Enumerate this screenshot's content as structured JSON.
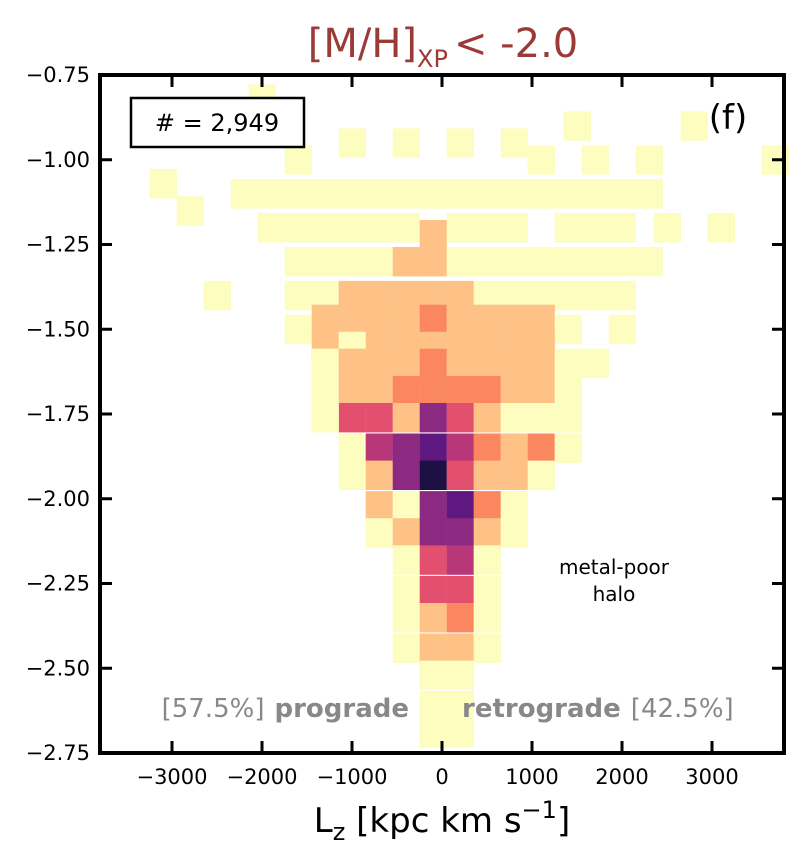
{
  "chart_data": {
    "type": "heatmap",
    "title_base": "[M/H]",
    "title_sub": "XP",
    "title_rest": "< -2.0",
    "xlabel": {
      "main": "L",
      "sub": "z",
      "rest": " [kpc km s",
      "sup": "−1",
      "close": "]"
    },
    "ylabel": "",
    "xlim": [
      -3800,
      3800
    ],
    "ylim": [
      -2.75,
      -0.75
    ],
    "x_ticks": [
      -3000,
      -2000,
      -1000,
      0,
      1000,
      2000,
      3000
    ],
    "x_tick_labels": [
      "−3000",
      "−2000",
      "−1000",
      "0",
      "1000",
      "2000",
      "3000"
    ],
    "y_ticks": [
      -0.75,
      -1.0,
      -1.25,
      -1.5,
      -1.75,
      -2.0,
      -2.25,
      -2.5,
      -2.75
    ],
    "y_tick_labels": [
      "−0.75",
      "−1.00",
      "−1.25",
      "−1.50",
      "−1.75",
      "−2.00",
      "−2.25",
      "−2.50",
      "−2.75"
    ],
    "bin_width_x": 295,
    "bin_height_y": 0.085,
    "colormap": [
      "#fcfdbf",
      "#fec287",
      "#fb8761",
      "#e3506f",
      "#b73779",
      "#8c2981",
      "#5f187f",
      "#1c1044"
    ],
    "cells": [
      {
        "x": -3100,
        "y": -1.07,
        "v": 0
      },
      {
        "x": -2800,
        "y": -1.15,
        "v": 0
      },
      {
        "x": -2500,
        "y": -1.4,
        "v": 0
      },
      {
        "x": -2000,
        "y": -0.82,
        "v": 0
      },
      {
        "x": 1500,
        "y": -0.9,
        "v": 0
      },
      {
        "x": 2800,
        "y": -0.9,
        "v": 0
      },
      {
        "x": 3700,
        "y": -1.0,
        "v": 0
      },
      {
        "x": 2500,
        "y": -1.2,
        "v": 0
      },
      {
        "x": 3100,
        "y": -1.2,
        "v": 0
      },
      {
        "x": -2200,
        "y": -1.1,
        "v": 0
      },
      {
        "x": -1900,
        "y": -1.1,
        "v": 0
      },
      {
        "x": -1600,
        "y": -1.1,
        "v": 0
      },
      {
        "x": -1300,
        "y": -1.1,
        "v": 0
      },
      {
        "x": -1000,
        "y": -1.1,
        "v": 0
      },
      {
        "x": -700,
        "y": -1.1,
        "v": 0
      },
      {
        "x": -400,
        "y": -1.1,
        "v": 0
      },
      {
        "x": -100,
        "y": -1.1,
        "v": 0
      },
      {
        "x": 200,
        "y": -1.1,
        "v": 0
      },
      {
        "x": 500,
        "y": -1.1,
        "v": 0
      },
      {
        "x": 800,
        "y": -1.1,
        "v": 0
      },
      {
        "x": 1100,
        "y": -1.1,
        "v": 0
      },
      {
        "x": 1400,
        "y": -1.1,
        "v": 0
      },
      {
        "x": 1700,
        "y": -1.1,
        "v": 0
      },
      {
        "x": 2000,
        "y": -1.1,
        "v": 0
      },
      {
        "x": 2300,
        "y": -1.1,
        "v": 0
      },
      {
        "x": -1600,
        "y": -1.0,
        "v": 0
      },
      {
        "x": -1000,
        "y": -0.95,
        "v": 0
      },
      {
        "x": -400,
        "y": -0.95,
        "v": 0
      },
      {
        "x": 200,
        "y": -0.95,
        "v": 0
      },
      {
        "x": 800,
        "y": -0.95,
        "v": 0
      },
      {
        "x": 1100,
        "y": -1.0,
        "v": 0
      },
      {
        "x": 1700,
        "y": -1.0,
        "v": 0
      },
      {
        "x": 2300,
        "y": -1.0,
        "v": 0
      },
      {
        "x": -1900,
        "y": -1.2,
        "v": 0
      },
      {
        "x": -1600,
        "y": -1.2,
        "v": 0
      },
      {
        "x": -1300,
        "y": -1.2,
        "v": 0
      },
      {
        "x": -1000,
        "y": -1.2,
        "v": 0
      },
      {
        "x": -700,
        "y": -1.2,
        "v": 0
      },
      {
        "x": -400,
        "y": -1.2,
        "v": 0
      },
      {
        "x": -100,
        "y": -1.22,
        "v": 1
      },
      {
        "x": 200,
        "y": -1.2,
        "v": 0
      },
      {
        "x": 500,
        "y": -1.2,
        "v": 0
      },
      {
        "x": 800,
        "y": -1.2,
        "v": 0
      },
      {
        "x": 1400,
        "y": -1.2,
        "v": 0
      },
      {
        "x": 1700,
        "y": -1.2,
        "v": 0
      },
      {
        "x": 2000,
        "y": -1.2,
        "v": 0
      },
      {
        "x": -1600,
        "y": -1.3,
        "v": 0
      },
      {
        "x": -1300,
        "y": -1.3,
        "v": 0
      },
      {
        "x": -1000,
        "y": -1.3,
        "v": 0
      },
      {
        "x": -700,
        "y": -1.3,
        "v": 0
      },
      {
        "x": -400,
        "y": -1.3,
        "v": 1
      },
      {
        "x": -100,
        "y": -1.3,
        "v": 1
      },
      {
        "x": 200,
        "y": -1.3,
        "v": 0
      },
      {
        "x": 500,
        "y": -1.3,
        "v": 0
      },
      {
        "x": 800,
        "y": -1.3,
        "v": 0
      },
      {
        "x": 1100,
        "y": -1.3,
        "v": 0
      },
      {
        "x": 1400,
        "y": -1.3,
        "v": 0
      },
      {
        "x": 1700,
        "y": -1.3,
        "v": 0
      },
      {
        "x": 2000,
        "y": -1.3,
        "v": 0
      },
      {
        "x": 2300,
        "y": -1.3,
        "v": 0
      },
      {
        "x": -1600,
        "y": -1.4,
        "v": 0
      },
      {
        "x": -1300,
        "y": -1.4,
        "v": 0
      },
      {
        "x": -1000,
        "y": -1.4,
        "v": 1
      },
      {
        "x": -700,
        "y": -1.4,
        "v": 1
      },
      {
        "x": -400,
        "y": -1.4,
        "v": 1
      },
      {
        "x": -100,
        "y": -1.4,
        "v": 1
      },
      {
        "x": 200,
        "y": -1.4,
        "v": 1
      },
      {
        "x": 500,
        "y": -1.4,
        "v": 0
      },
      {
        "x": 800,
        "y": -1.4,
        "v": 0
      },
      {
        "x": 1100,
        "y": -1.4,
        "v": 0
      },
      {
        "x": 1400,
        "y": -1.4,
        "v": 0
      },
      {
        "x": 1700,
        "y": -1.4,
        "v": 0
      },
      {
        "x": 2000,
        "y": -1.4,
        "v": 0
      },
      {
        "x": -1600,
        "y": -1.5,
        "v": 0
      },
      {
        "x": -1300,
        "y": -1.47,
        "v": 1
      },
      {
        "x": -1000,
        "y": -1.47,
        "v": 1
      },
      {
        "x": -700,
        "y": -1.47,
        "v": 1
      },
      {
        "x": -400,
        "y": -1.47,
        "v": 1
      },
      {
        "x": -100,
        "y": -1.47,
        "v": 2
      },
      {
        "x": 200,
        "y": -1.47,
        "v": 1
      },
      {
        "x": 500,
        "y": -1.47,
        "v": 1
      },
      {
        "x": 800,
        "y": -1.47,
        "v": 1
      },
      {
        "x": 1100,
        "y": -1.47,
        "v": 1
      },
      {
        "x": 1400,
        "y": -1.5,
        "v": 0
      },
      {
        "x": 2000,
        "y": -1.5,
        "v": 0
      },
      {
        "x": -1300,
        "y": -1.55,
        "v": 1
      },
      {
        "x": -1000,
        "y": -1.55,
        "v": 0
      },
      {
        "x": -700,
        "y": -1.55,
        "v": 1
      },
      {
        "x": -400,
        "y": -1.55,
        "v": 1
      },
      {
        "x": -100,
        "y": -1.55,
        "v": 1
      },
      {
        "x": 200,
        "y": -1.55,
        "v": 1
      },
      {
        "x": 500,
        "y": -1.55,
        "v": 1
      },
      {
        "x": 800,
        "y": -1.55,
        "v": 1
      },
      {
        "x": 1100,
        "y": -1.55,
        "v": 1
      },
      {
        "x": -1300,
        "y": -1.6,
        "v": 0
      },
      {
        "x": -1000,
        "y": -1.6,
        "v": 1
      },
      {
        "x": -700,
        "y": -1.6,
        "v": 1
      },
      {
        "x": -400,
        "y": -1.6,
        "v": 1
      },
      {
        "x": -100,
        "y": -1.6,
        "v": 2
      },
      {
        "x": 200,
        "y": -1.6,
        "v": 1
      },
      {
        "x": 500,
        "y": -1.6,
        "v": 1
      },
      {
        "x": 800,
        "y": -1.6,
        "v": 1
      },
      {
        "x": 1100,
        "y": -1.6,
        "v": 1
      },
      {
        "x": 1400,
        "y": -1.6,
        "v": 0
      },
      {
        "x": 1700,
        "y": -1.6,
        "v": 0
      },
      {
        "x": -1300,
        "y": -1.68,
        "v": 0
      },
      {
        "x": -1000,
        "y": -1.68,
        "v": 1
      },
      {
        "x": -700,
        "y": -1.68,
        "v": 1
      },
      {
        "x": -400,
        "y": -1.68,
        "v": 2
      },
      {
        "x": -100,
        "y": -1.68,
        "v": 2
      },
      {
        "x": 200,
        "y": -1.68,
        "v": 2
      },
      {
        "x": 500,
        "y": -1.68,
        "v": 2
      },
      {
        "x": 800,
        "y": -1.68,
        "v": 1
      },
      {
        "x": 1100,
        "y": -1.68,
        "v": 1
      },
      {
        "x": 1400,
        "y": -1.68,
        "v": 0
      },
      {
        "x": -1000,
        "y": -1.76,
        "v": 3
      },
      {
        "x": -700,
        "y": -1.76,
        "v": 3
      },
      {
        "x": -400,
        "y": -1.76,
        "v": 1
      },
      {
        "x": -100,
        "y": -1.76,
        "v": 5
      },
      {
        "x": 200,
        "y": -1.76,
        "v": 3
      },
      {
        "x": 500,
        "y": -1.76,
        "v": 1
      },
      {
        "x": 800,
        "y": -1.76,
        "v": 0
      },
      {
        "x": 1100,
        "y": -1.76,
        "v": 0
      },
      {
        "x": 1400,
        "y": -1.76,
        "v": 0
      },
      {
        "x": -1300,
        "y": -1.76,
        "v": 0
      },
      {
        "x": -1000,
        "y": -1.85,
        "v": 0
      },
      {
        "x": -700,
        "y": -1.85,
        "v": 4
      },
      {
        "x": -400,
        "y": -1.85,
        "v": 5
      },
      {
        "x": -100,
        "y": -1.85,
        "v": 6
      },
      {
        "x": 200,
        "y": -1.85,
        "v": 4
      },
      {
        "x": 500,
        "y": -1.85,
        "v": 2
      },
      {
        "x": 800,
        "y": -1.85,
        "v": 1
      },
      {
        "x": 1100,
        "y": -1.85,
        "v": 2
      },
      {
        "x": 1400,
        "y": -1.85,
        "v": 0
      },
      {
        "x": -1000,
        "y": -1.93,
        "v": 0
      },
      {
        "x": -700,
        "y": -1.93,
        "v": 1
      },
      {
        "x": -400,
        "y": -1.93,
        "v": 5
      },
      {
        "x": -100,
        "y": -1.93,
        "v": 7
      },
      {
        "x": 200,
        "y": -1.93,
        "v": 3
      },
      {
        "x": 500,
        "y": -1.93,
        "v": 1
      },
      {
        "x": 800,
        "y": -1.93,
        "v": 1
      },
      {
        "x": 1100,
        "y": -1.93,
        "v": 0
      },
      {
        "x": -700,
        "y": -2.02,
        "v": 1
      },
      {
        "x": -400,
        "y": -2.02,
        "v": 0
      },
      {
        "x": -100,
        "y": -2.02,
        "v": 5
      },
      {
        "x": 200,
        "y": -2.02,
        "v": 6
      },
      {
        "x": 500,
        "y": -2.02,
        "v": 2
      },
      {
        "x": 800,
        "y": -2.02,
        "v": 0
      },
      {
        "x": -700,
        "y": -2.1,
        "v": 0
      },
      {
        "x": -400,
        "y": -2.1,
        "v": 1
      },
      {
        "x": -100,
        "y": -2.1,
        "v": 5
      },
      {
        "x": 200,
        "y": -2.1,
        "v": 5
      },
      {
        "x": 500,
        "y": -2.1,
        "v": 1
      },
      {
        "x": 800,
        "y": -2.1,
        "v": 0
      },
      {
        "x": -400,
        "y": -2.18,
        "v": 0
      },
      {
        "x": -100,
        "y": -2.18,
        "v": 3
      },
      {
        "x": 200,
        "y": -2.18,
        "v": 4
      },
      {
        "x": 500,
        "y": -2.18,
        "v": 0
      },
      {
        "x": -400,
        "y": -2.27,
        "v": 0
      },
      {
        "x": -100,
        "y": -2.27,
        "v": 3
      },
      {
        "x": 200,
        "y": -2.27,
        "v": 3
      },
      {
        "x": 500,
        "y": -2.27,
        "v": 0
      },
      {
        "x": -400,
        "y": -2.35,
        "v": 0
      },
      {
        "x": -100,
        "y": -2.35,
        "v": 1
      },
      {
        "x": 200,
        "y": -2.35,
        "v": 2
      },
      {
        "x": 500,
        "y": -2.35,
        "v": 0
      },
      {
        "x": -400,
        "y": -2.44,
        "v": 0
      },
      {
        "x": -100,
        "y": -2.44,
        "v": 1
      },
      {
        "x": 200,
        "y": -2.44,
        "v": 1
      },
      {
        "x": 500,
        "y": -2.44,
        "v": 0
      },
      {
        "x": -100,
        "y": -2.52,
        "v": 0
      },
      {
        "x": 200,
        "y": -2.52,
        "v": 0
      },
      {
        "x": -100,
        "y": -2.61,
        "v": 0
      },
      {
        "x": 200,
        "y": -2.61,
        "v": 0
      },
      {
        "x": -100,
        "y": -2.69,
        "v": 0
      },
      {
        "x": 200,
        "y": -2.69,
        "v": 0
      }
    ],
    "annotations": {
      "count": "# = 2,949",
      "panel": "(f)",
      "region_line1": "metal-poor",
      "region_line2": "halo",
      "prograde_pct": "[57.5%]",
      "prograde_word": "prograde",
      "retrograde_word": "retrograde",
      "retrograde_pct": "[42.5%]"
    }
  }
}
